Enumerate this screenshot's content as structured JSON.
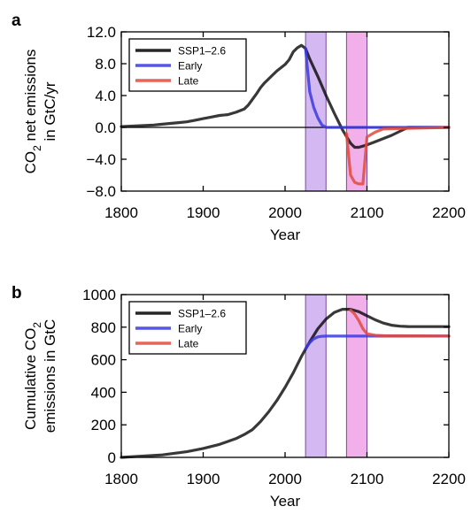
{
  "chart_data": [
    {
      "panel_label": "a",
      "type": "line",
      "xlabel": "Year",
      "ylabel_line1": "CO",
      "ylabel_sub": "2",
      "ylabel_line1_rest": " net emissions",
      "ylabel_line2": "in GtC/yr",
      "xlim": [
        1800,
        2200
      ],
      "ylim": [
        -8,
        12
      ],
      "xticks": [
        "1800",
        "1900",
        "2000",
        "2100",
        "2200"
      ],
      "yticks": [
        "12.0",
        "8.0",
        "4.0",
        "0.0",
        "−4.0",
        "−8.0"
      ],
      "ytick_values": [
        12,
        8,
        4,
        0,
        -4,
        -8
      ],
      "zero_line": true,
      "legend_position": "top-left",
      "shaded_periods": [
        {
          "x": [
            2025,
            2050
          ],
          "color": "#b07de8"
        },
        {
          "x": [
            2075,
            2100
          ],
          "color": "#e66fd8"
        }
      ],
      "series": [
        {
          "name": "SSP1–2.6",
          "color": "#000000",
          "x": [
            1800,
            1820,
            1840,
            1850,
            1860,
            1870,
            1880,
            1890,
            1900,
            1910,
            1920,
            1930,
            1940,
            1950,
            1955,
            1960,
            1965,
            1970,
            1975,
            1980,
            1985,
            1990,
            1995,
            2000,
            2005,
            2010,
            2015,
            2020,
            2025,
            2030,
            2040,
            2050,
            2060,
            2070,
            2080,
            2085,
            2090,
            2100,
            2110,
            2120,
            2130,
            2140,
            2150,
            2200
          ],
          "y": [
            0.1,
            0.2,
            0.3,
            0.4,
            0.5,
            0.6,
            0.7,
            0.9,
            1.1,
            1.3,
            1.5,
            1.6,
            1.9,
            2.3,
            2.8,
            3.5,
            4.2,
            5.0,
            5.6,
            6.1,
            6.6,
            7.1,
            7.5,
            7.9,
            8.5,
            9.5,
            10.0,
            10.3,
            9.9,
            8.6,
            6.4,
            4.0,
            1.8,
            -0.3,
            -2.0,
            -2.5,
            -2.5,
            -2.2,
            -1.8,
            -1.4,
            -1.0,
            -0.5,
            0.0,
            0.0
          ]
        },
        {
          "name": "Early",
          "color": "#3a3ae0",
          "x": [
            2025,
            2030,
            2035,
            2040,
            2045,
            2050,
            2200
          ],
          "y": [
            9.9,
            4.5,
            2.5,
            1.2,
            0.3,
            0.0,
            0.0
          ]
        },
        {
          "name": "Late",
          "color": "#e04a3c",
          "x": [
            2075,
            2080,
            2085,
            2090,
            2095,
            2100,
            2110,
            2120,
            2200
          ],
          "y": [
            -0.8,
            -6.0,
            -6.9,
            -7.1,
            -7.1,
            -1.2,
            -0.6,
            -0.2,
            0.0
          ]
        }
      ]
    },
    {
      "panel_label": "b",
      "type": "line",
      "xlabel": "Year",
      "ylabel_line1": "Cumulative CO",
      "ylabel_sub": "2",
      "ylabel_line1_rest": "",
      "ylabel_line2": "emissions in GtC",
      "xlim": [
        1800,
        2200
      ],
      "ylim": [
        0,
        1000
      ],
      "xticks": [
        "1800",
        "1900",
        "2000",
        "2100",
        "2200"
      ],
      "yticks": [
        "1000",
        "800",
        "600",
        "400",
        "200",
        "0"
      ],
      "ytick_values": [
        1000,
        800,
        600,
        400,
        200,
        0
      ],
      "zero_line": false,
      "legend_position": "top-left",
      "shaded_periods": [
        {
          "x": [
            2025,
            2050
          ],
          "color": "#b07de8"
        },
        {
          "x": [
            2075,
            2100
          ],
          "color": "#e66fd8"
        }
      ],
      "series": [
        {
          "name": "SSP1–2.6",
          "color": "#000000",
          "x": [
            1800,
            1850,
            1880,
            1900,
            1920,
            1940,
            1950,
            1960,
            1970,
            1980,
            1990,
            2000,
            2010,
            2020,
            2030,
            2040,
            2050,
            2060,
            2070,
            2080,
            2090,
            2100,
            2110,
            2120,
            2130,
            2140,
            2150,
            2160,
            2200
          ],
          "y": [
            0,
            15,
            35,
            55,
            80,
            115,
            140,
            170,
            220,
            280,
            350,
            430,
            520,
            620,
            710,
            790,
            850,
            890,
            910,
            910,
            895,
            870,
            845,
            825,
            812,
            806,
            804,
            803,
            803
          ]
        },
        {
          "name": "Early",
          "color": "#3a3ae0",
          "x": [
            2025,
            2030,
            2035,
            2040,
            2045,
            2050,
            2200
          ],
          "y": [
            668,
            705,
            728,
            740,
            744,
            745,
            745
          ]
        },
        {
          "name": "Late",
          "color": "#e04a3c",
          "x": [
            2080,
            2085,
            2090,
            2095,
            2100,
            2110,
            2120,
            2200
          ],
          "y": [
            905,
            880,
            840,
            790,
            760,
            750,
            748,
            745
          ]
        }
      ]
    }
  ]
}
